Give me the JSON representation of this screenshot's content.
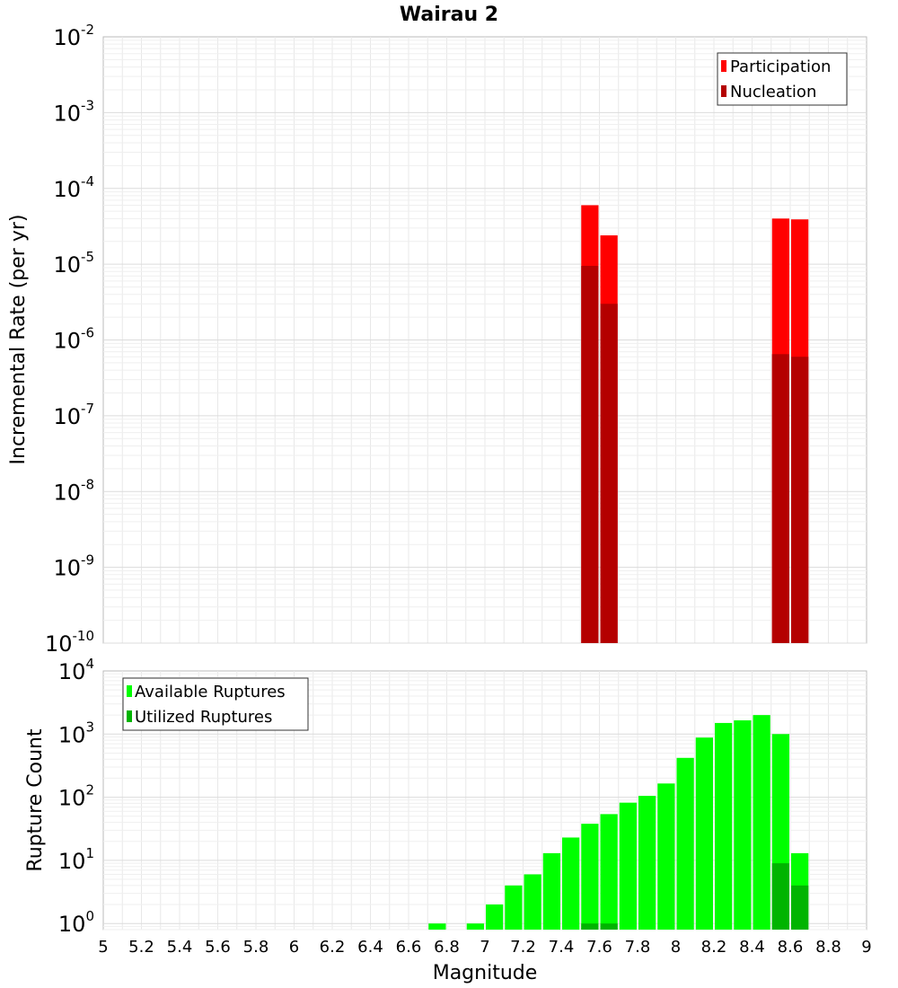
{
  "chart_data": [
    {
      "type": "bar",
      "title": "Wairau 2",
      "xlabel": "Magnitude",
      "ylabel": "Incremental Rate (per yr)",
      "y_scale": "log",
      "ylim": [
        1e-10,
        0.01
      ],
      "xlim": [
        5,
        9
      ],
      "grid": true,
      "legend_position": "top-right",
      "series": [
        {
          "name": "Participation",
          "color": "#ff0000",
          "x": [
            7.55,
            7.65,
            8.55,
            8.65
          ],
          "values": [
            6e-05,
            2.4e-05,
            4e-05,
            3.9e-05
          ]
        },
        {
          "name": "Nucleation",
          "color": "#b40000",
          "x": [
            7.55,
            7.65,
            8.55,
            8.65
          ],
          "values": [
            9.5e-06,
            3e-06,
            6.5e-07,
            6e-07
          ]
        }
      ]
    },
    {
      "type": "bar",
      "xlabel": "Magnitude",
      "ylabel": "Rupture Count",
      "y_scale": "log",
      "ylim": [
        0.8,
        10000.0
      ],
      "xlim": [
        5,
        9
      ],
      "grid": true,
      "legend_position": "top-left",
      "series": [
        {
          "name": "Available Ruptures",
          "color": "#00ff00",
          "x": [
            6.75,
            6.95,
            7.05,
            7.15,
            7.25,
            7.35,
            7.45,
            7.55,
            7.65,
            7.75,
            7.85,
            7.95,
            8.05,
            8.15,
            8.25,
            8.35,
            8.45,
            8.55,
            8.65
          ],
          "values": [
            1,
            1,
            2,
            4,
            6,
            13,
            23,
            38,
            54,
            82,
            105,
            165,
            420,
            880,
            1500,
            1650,
            2000,
            1000,
            13
          ]
        },
        {
          "name": "Utilized Ruptures",
          "color": "#00b400",
          "x": [
            7.55,
            7.65,
            8.55,
            8.65
          ],
          "values": [
            1,
            1,
            9,
            4
          ]
        }
      ]
    }
  ],
  "x_ticks": [
    "5",
    "5.2",
    "5.4",
    "5.6",
    "5.8",
    "6",
    "6.2",
    "6.4",
    "6.6",
    "6.8",
    "7",
    "7.2",
    "7.4",
    "7.6",
    "7.8",
    "8",
    "8.2",
    "8.4",
    "8.6",
    "8.8",
    "9"
  ]
}
